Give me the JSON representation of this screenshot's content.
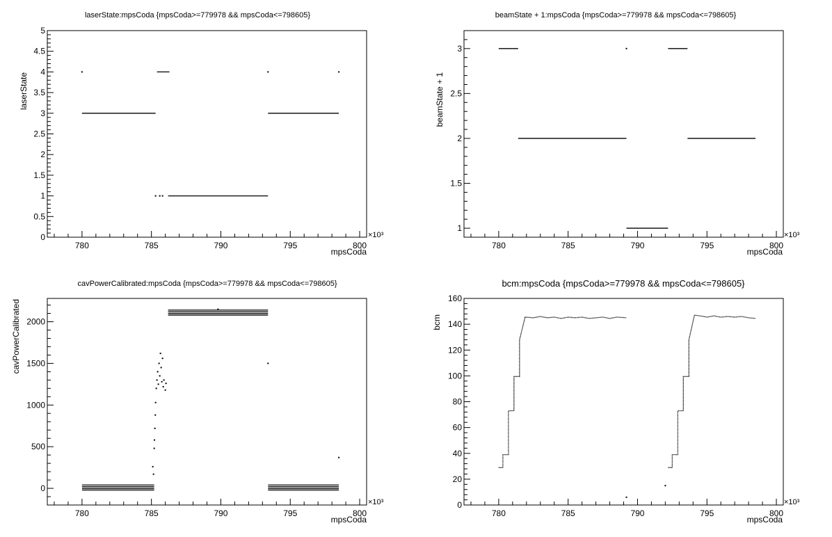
{
  "canvas_background": "#ffffff",
  "chart_data": [
    {
      "type": "scatter",
      "title": "laserState:mpsCoda {mpsCoda>=779978 && mpsCoda<=798605}",
      "xlabel": "mpsCoda",
      "ylabel": "laserState",
      "x_multiplier_label": "×10³",
      "xlim": [
        777.5,
        800.5
      ],
      "ylim": [
        0,
        5
      ],
      "xticks": [
        780,
        785,
        790,
        795,
        800
      ],
      "xtick_labels": [
        "780",
        "785",
        "790",
        "795",
        "800"
      ],
      "yticks": [
        0,
        0.5,
        1,
        1.5,
        2,
        2.5,
        3,
        3.5,
        4,
        4.5,
        5
      ],
      "ytick_labels": [
        "0",
        "0.5",
        "1",
        "1.5",
        "2",
        "2.5",
        "3",
        "3.5",
        "4",
        "4.5",
        "5"
      ],
      "segments": [
        {
          "x": [
            780.0,
            785.3
          ],
          "y": 3
        },
        {
          "x": [
            785.4,
            786.3
          ],
          "y": 4
        },
        {
          "x": [
            786.2,
            793.4
          ],
          "y": 1
        },
        {
          "x": [
            793.4,
            798.5
          ],
          "y": 3
        }
      ],
      "points": [
        {
          "x": 780.0,
          "y": 4
        },
        {
          "x": 793.4,
          "y": 4
        },
        {
          "x": 798.5,
          "y": 4
        },
        {
          "x": 785.3,
          "y": 1
        },
        {
          "x": 785.6,
          "y": 1
        },
        {
          "x": 785.8,
          "y": 1
        }
      ],
      "grid": false
    },
    {
      "type": "scatter",
      "title": "beamState + 1:mpsCoda {mpsCoda>=779978 && mpsCoda<=798605}",
      "xlabel": "mpsCoda",
      "ylabel": "beamState + 1",
      "x_multiplier_label": "×10³",
      "xlim": [
        777.5,
        800.5
      ],
      "ylim": [
        0.9,
        3.2
      ],
      "xticks": [
        780,
        785,
        790,
        795,
        800
      ],
      "xtick_labels": [
        "780",
        "785",
        "790",
        "795",
        "800"
      ],
      "yticks": [
        1,
        1.5,
        2,
        2.5,
        3
      ],
      "ytick_labels": [
        "1",
        "1.5",
        "2",
        "2.5",
        "3"
      ],
      "segments": [
        {
          "x": [
            780.0,
            781.4
          ],
          "y": 3
        },
        {
          "x": [
            781.4,
            789.2
          ],
          "y": 2
        },
        {
          "x": [
            789.2,
            792.2
          ],
          "y": 1
        },
        {
          "x": [
            792.2,
            793.6
          ],
          "y": 3
        },
        {
          "x": [
            793.6,
            798.5
          ],
          "y": 2
        }
      ],
      "points": [
        {
          "x": 789.2,
          "y": 3
        }
      ],
      "grid": false
    },
    {
      "type": "scatter",
      "title": "cavPowerCalibrated:mpsCoda {mpsCoda>=779978 && mpsCoda<=798605}",
      "xlabel": "mpsCoda",
      "ylabel": "cavPowerCalibrated",
      "x_multiplier_label": "×10³",
      "xlim": [
        777.5,
        800.5
      ],
      "ylim": [
        -200,
        2280
      ],
      "xticks": [
        780,
        785,
        790,
        795,
        800
      ],
      "xtick_labels": [
        "780",
        "785",
        "790",
        "795",
        "800"
      ],
      "yticks": [
        0,
        500,
        1000,
        1500,
        2000
      ],
      "ytick_labels": [
        "0",
        "500",
        "1000",
        "1500",
        "2000"
      ],
      "segments": [
        {
          "x": [
            780.0,
            785.2
          ],
          "y": 40
        },
        {
          "x": [
            780.0,
            785.2
          ],
          "y": 20
        },
        {
          "x": [
            780.0,
            785.2
          ],
          "y": 0
        },
        {
          "x": [
            780.0,
            785.2
          ],
          "y": -20
        },
        {
          "x": [
            786.2,
            793.4
          ],
          "y": 2140
        },
        {
          "x": [
            786.2,
            793.4
          ],
          "y": 2120
        },
        {
          "x": [
            786.2,
            793.4
          ],
          "y": 2100
        },
        {
          "x": [
            786.2,
            793.4
          ],
          "y": 2080
        },
        {
          "x": [
            793.4,
            798.5
          ],
          "y": 40
        },
        {
          "x": [
            793.4,
            798.5
          ],
          "y": 20
        },
        {
          "x": [
            793.4,
            798.5
          ],
          "y": 0
        },
        {
          "x": [
            793.4,
            798.5
          ],
          "y": -20
        }
      ],
      "points": [
        {
          "x": 785.1,
          "y": 260
        },
        {
          "x": 785.15,
          "y": 170
        },
        {
          "x": 785.2,
          "y": 480
        },
        {
          "x": 785.22,
          "y": 580
        },
        {
          "x": 785.25,
          "y": 720
        },
        {
          "x": 785.28,
          "y": 880
        },
        {
          "x": 785.3,
          "y": 1030
        },
        {
          "x": 785.35,
          "y": 1200
        },
        {
          "x": 785.4,
          "y": 1300
        },
        {
          "x": 785.45,
          "y": 1400
        },
        {
          "x": 785.5,
          "y": 1250
        },
        {
          "x": 785.55,
          "y": 1500
        },
        {
          "x": 785.6,
          "y": 1350
        },
        {
          "x": 785.65,
          "y": 1620
        },
        {
          "x": 785.7,
          "y": 1450
        },
        {
          "x": 785.75,
          "y": 1280
        },
        {
          "x": 785.8,
          "y": 1560
        },
        {
          "x": 785.85,
          "y": 1220
        },
        {
          "x": 785.9,
          "y": 1300
        },
        {
          "x": 786.0,
          "y": 1180
        },
        {
          "x": 786.05,
          "y": 1260
        },
        {
          "x": 793.4,
          "y": 1500
        },
        {
          "x": 798.5,
          "y": 370
        },
        {
          "x": 789.8,
          "y": 2150
        }
      ],
      "grid": false
    },
    {
      "type": "line",
      "title": "bcm:mpsCoda {mpsCoda>=779978 && mpsCoda<=798605}",
      "xlabel": "mpsCoda",
      "ylabel": "bcm",
      "x_multiplier_label": "×10³",
      "xlim": [
        777.5,
        800.5
      ],
      "ylim": [
        0,
        160
      ],
      "xticks": [
        780,
        785,
        790,
        795,
        800
      ],
      "xtick_labels": [
        "780",
        "785",
        "790",
        "795",
        "800"
      ],
      "yticks": [
        0,
        20,
        40,
        60,
        80,
        100,
        120,
        140,
        160
      ],
      "ytick_labels": [
        "0",
        "20",
        "40",
        "60",
        "80",
        "100",
        "120",
        "140",
        "160"
      ],
      "series": [
        {
          "x": [
            780.0,
            780.3,
            780.3,
            780.7,
            780.7,
            781.1,
            781.1,
            781.5,
            781.5,
            781.9,
            782.5,
            783.0,
            783.5,
            784.0,
            784.5,
            785.0,
            785.5,
            786.0,
            786.5,
            787.0,
            787.5,
            788.0,
            788.5,
            789.2
          ],
          "y": [
            29,
            29,
            39,
            39,
            73,
            73,
            99.5,
            99.5,
            128,
            145.5,
            145,
            146,
            145,
            145.5,
            144.5,
            145.5,
            145,
            145.5,
            144.5,
            145,
            145.5,
            144.5,
            145.5,
            145
          ]
        },
        {
          "x": [
            792.2,
            792.5,
            792.5,
            792.9,
            792.9,
            793.3,
            793.3,
            793.7,
            793.7,
            794.1,
            794.5,
            795.0,
            795.5,
            796.0,
            796.5,
            797.0,
            797.5,
            798.0,
            798.5
          ],
          "y": [
            29,
            29,
            39,
            39,
            73,
            73,
            99.5,
            99.5,
            128,
            147,
            146.5,
            145.5,
            146.5,
            145.5,
            146,
            145.5,
            146,
            145,
            144.5
          ]
        }
      ],
      "points": [
        {
          "x": 789.2,
          "y": 6
        },
        {
          "x": 792.0,
          "y": 15
        }
      ],
      "grid": false
    }
  ]
}
